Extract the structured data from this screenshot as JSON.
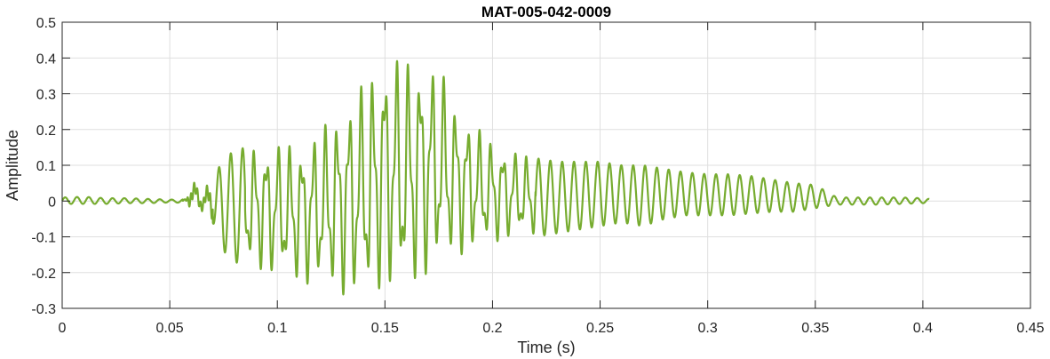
{
  "chart_data": {
    "type": "line",
    "title": "MAT-005-042-0009",
    "xlabel": "Time (s)",
    "ylabel": "Amplitude",
    "xlim": [
      0,
      0.45
    ],
    "ylim": [
      -0.3,
      0.5
    ],
    "grid": true,
    "x_ticks": [
      "0",
      "0.05",
      "0.1",
      "0.15",
      "0.2",
      "0.25",
      "0.3",
      "0.35",
      "0.4",
      "0.45"
    ],
    "y_ticks": [
      "-0.3",
      "-0.2",
      "-0.1",
      "0",
      "0.1",
      "0.2",
      "0.3",
      "0.4",
      "0.5"
    ],
    "series": [
      {
        "color": "#77ac30",
        "x_start": 0,
        "x_end": 0.403,
        "envelope": {
          "x": [
            0,
            0.01,
            0.02,
            0.03,
            0.04,
            0.05,
            0.057,
            0.06,
            0.065,
            0.07,
            0.075,
            0.08,
            0.09,
            0.1,
            0.11,
            0.12,
            0.13,
            0.14,
            0.145,
            0.15,
            0.155,
            0.16,
            0.165,
            0.17,
            0.175,
            0.18,
            0.19,
            0.2,
            0.21,
            0.22,
            0.23,
            0.24,
            0.25,
            0.26,
            0.27,
            0.28,
            0.29,
            0.3,
            0.31,
            0.32,
            0.33,
            0.34,
            0.35,
            0.36,
            0.37,
            0.38,
            0.39,
            0.4,
            0.403
          ],
          "max": [
            0.01,
            0.012,
            0.008,
            0.008,
            0.006,
            0.004,
            0.005,
            0.065,
            0.03,
            0.06,
            0.12,
            0.14,
            0.16,
            0.16,
            0.16,
            0.2,
            0.26,
            0.33,
            0.37,
            0.41,
            0.41,
            0.39,
            0.41,
            0.38,
            0.39,
            0.3,
            0.22,
            0.17,
            0.14,
            0.12,
            0.11,
            0.11,
            0.11,
            0.1,
            0.1,
            0.09,
            0.08,
            0.075,
            0.075,
            0.07,
            0.06,
            0.05,
            0.045,
            0.01,
            0.01,
            0.01,
            0.01,
            0.008,
            0.006
          ],
          "min": [
            -0.008,
            -0.008,
            -0.008,
            -0.006,
            -0.006,
            -0.004,
            -0.005,
            -0.02,
            -0.03,
            -0.06,
            -0.14,
            -0.17,
            -0.19,
            -0.21,
            -0.23,
            -0.24,
            -0.26,
            -0.28,
            -0.27,
            -0.23,
            -0.26,
            -0.25,
            -0.24,
            -0.2,
            -0.19,
            -0.16,
            -0.14,
            -0.12,
            -0.1,
            -0.1,
            -0.09,
            -0.08,
            -0.07,
            -0.06,
            -0.07,
            -0.05,
            -0.04,
            -0.04,
            -0.04,
            -0.035,
            -0.03,
            -0.03,
            -0.02,
            -0.01,
            -0.01,
            -0.01,
            -0.008,
            -0.006,
            -0.005
          ]
        }
      }
    ]
  }
}
